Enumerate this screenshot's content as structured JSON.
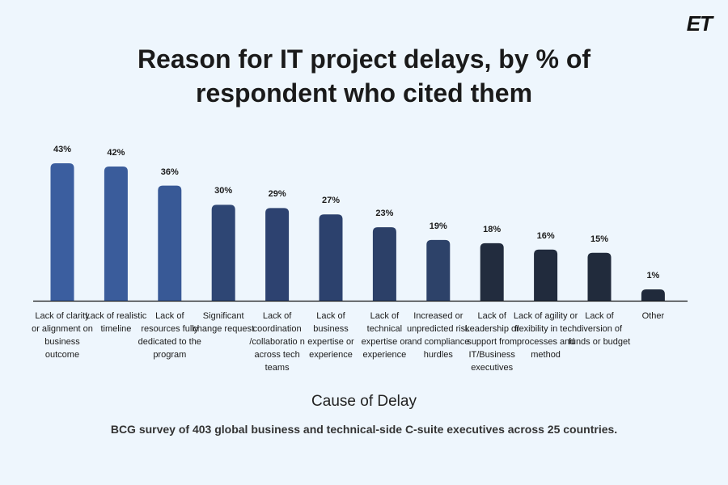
{
  "logo": "ET",
  "chart_data": {
    "type": "bar",
    "title_lines": [
      "Reason for IT project delays, by % of",
      "respondent who cited them"
    ],
    "xlabel": "Cause of Delay",
    "ylabel": "",
    "note": "BCG survey of 403 global business and technical-side C-suite executives across 25 countries.",
    "categories": [
      "Lack of clarity or alignment on business outcome",
      "Lack of realistic timeline",
      "Lack of resources fully dedicated to the program",
      "Significant change request",
      "Lack of coordination /collaboratio n across tech teams",
      "Lack of business expertise or experience",
      "Lack of technical expertise or experience",
      "Increased or unpredicted risk and compliance hurdles",
      "Lack of Leadership or support from IT/Business executives",
      "Lack of agility or flexibility in tech processes and method",
      "Lack of diversion of funds or budget",
      "Other"
    ],
    "values": [
      43,
      42,
      36,
      30,
      29,
      27,
      23,
      19,
      18,
      16,
      15,
      1
    ],
    "value_labels": [
      "43%",
      "42%",
      "36%",
      "30%",
      "29%",
      "27%",
      "23%",
      "19%",
      "18%",
      "16%",
      "15%",
      "1%"
    ],
    "bar_colors": [
      "#3b5e9f",
      "#3a5c9b",
      "#385996",
      "#2e4674",
      "#2d4270",
      "#2c416d",
      "#2c4068",
      "#2d4269",
      "#222c3e",
      "#212b3d",
      "#212b3c",
      "#202a3b"
    ],
    "ylim": [
      0,
      43
    ],
    "grid": false,
    "legend": "none"
  }
}
